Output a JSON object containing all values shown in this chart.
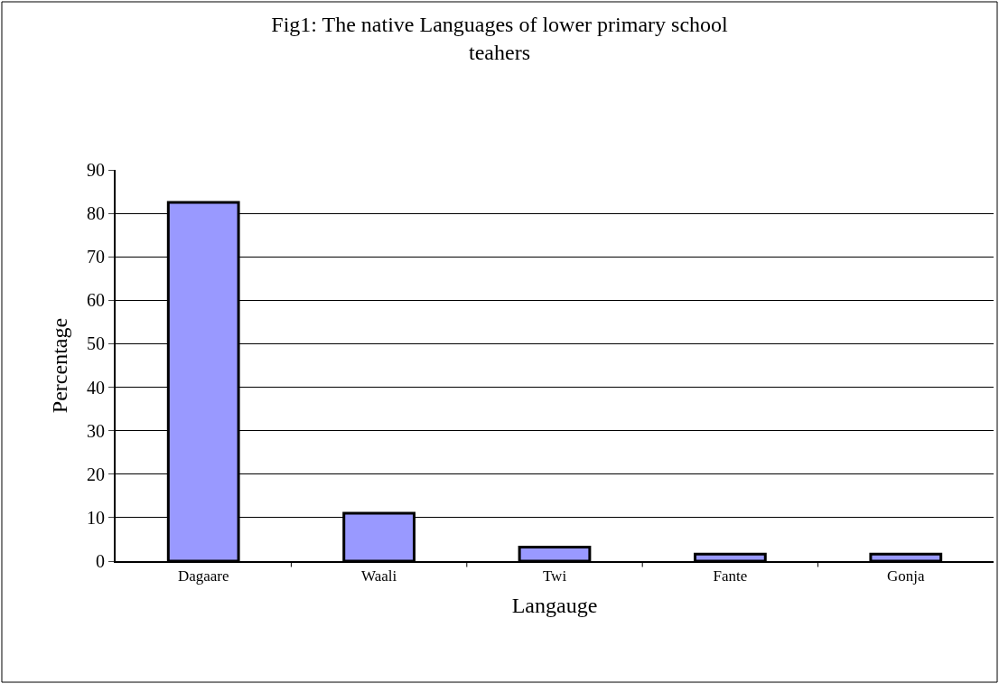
{
  "chart_data": {
    "type": "bar",
    "title": "Fig1: The native Languages of lower primary school teahers",
    "xlabel": "Langauge",
    "ylabel": "Percentage",
    "categories": [
      "Dagaare",
      "Waali",
      "Twi",
      "Fante",
      "Gonja"
    ],
    "values": [
      82.5,
      11.0,
      3.2,
      1.6,
      1.6
    ],
    "color": "#9999ff",
    "ylim": [
      0,
      90
    ],
    "yticks": [
      0,
      10,
      20,
      30,
      40,
      50,
      60,
      70,
      80,
      90
    ],
    "grid": "y"
  }
}
